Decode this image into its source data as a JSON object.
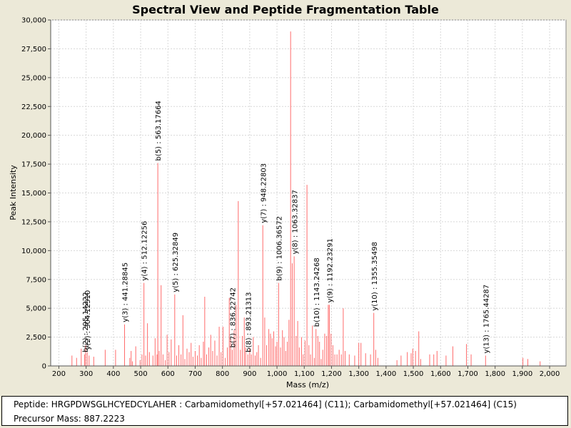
{
  "info": {
    "peptide_label": "Peptide:",
    "peptide": "HRGPDWSGLHCYEDCYLAHER : Carbamidomethyl[+57.021464] (C11); Carbamidomethyl[+57.021464] (C15)",
    "precursor_label": "Precursor Mass:",
    "precursor": "887.2223"
  },
  "colors": {
    "peak": "#ff6b6b",
    "plot_bg": "#ffffff",
    "grid": "#d8d8d8",
    "page_bg": "#ece9d8"
  },
  "chart_data": {
    "type": "bar",
    "title": "Spectral View and Peptide Fragmentation Table",
    "xlabel": "Mass (m/z)",
    "ylabel": "Peak Intensity",
    "xlim": [
      170,
      2060
    ],
    "ylim": [
      0,
      30000
    ],
    "grid": true,
    "x_ticks": [
      200,
      300,
      400,
      500,
      600,
      700,
      800,
      900,
      1000,
      1100,
      1200,
      1300,
      1400,
      1500,
      1600,
      1700,
      1800,
      1900,
      2000
    ],
    "x_tick_labels": [
      "200",
      "300",
      "400",
      "500",
      "600",
      "700",
      "800",
      "900",
      "1,000",
      "1,100",
      "1,200",
      "1,300",
      "1,400",
      "1,500",
      "1,600",
      "1,700",
      "1,800",
      "1,900",
      "2,000"
    ],
    "y_ticks": [
      0,
      2500,
      5000,
      7500,
      10000,
      12500,
      15000,
      17500,
      20000,
      22500,
      25000,
      27500,
      30000
    ],
    "y_tick_labels": [
      "0",
      "2,500",
      "5,000",
      "7,500",
      "10,000",
      "12,500",
      "15,000",
      "17,500",
      "20,000",
      "22,500",
      "25,000",
      "27,500",
      "30,000"
    ],
    "peaks": [
      [
        248,
        900
      ],
      [
        265,
        700
      ],
      [
        282,
        1500
      ],
      [
        294,
        1000
      ],
      [
        298,
        1800
      ],
      [
        304,
        1200
      ],
      [
        311,
        900
      ],
      [
        328,
        800
      ],
      [
        370,
        1400
      ],
      [
        408,
        1400
      ],
      [
        441,
        3600
      ],
      [
        460,
        700
      ],
      [
        465,
        1300
      ],
      [
        470,
        400
      ],
      [
        482,
        1700
      ],
      [
        498,
        500
      ],
      [
        505,
        1000
      ],
      [
        512,
        7200
      ],
      [
        518,
        900
      ],
      [
        525,
        3700
      ],
      [
        532,
        1200
      ],
      [
        545,
        900
      ],
      [
        553,
        2400
      ],
      [
        560,
        1000
      ],
      [
        563,
        17600
      ],
      [
        568,
        1300
      ],
      [
        575,
        7000
      ],
      [
        582,
        1000
      ],
      [
        590,
        500
      ],
      [
        597,
        2700
      ],
      [
        604,
        1200
      ],
      [
        612,
        2300
      ],
      [
        625,
        6200
      ],
      [
        632,
        900
      ],
      [
        640,
        1800
      ],
      [
        648,
        1000
      ],
      [
        655,
        4400
      ],
      [
        662,
        600
      ],
      [
        670,
        1500
      ],
      [
        678,
        1200
      ],
      [
        685,
        2000
      ],
      [
        692,
        800
      ],
      [
        700,
        1300
      ],
      [
        708,
        900
      ],
      [
        715,
        1800
      ],
      [
        722,
        700
      ],
      [
        730,
        2100
      ],
      [
        735,
        6000
      ],
      [
        742,
        1000
      ],
      [
        750,
        1600
      ],
      [
        757,
        2700
      ],
      [
        764,
        1300
      ],
      [
        772,
        2200
      ],
      [
        780,
        900
      ],
      [
        788,
        3400
      ],
      [
        795,
        1200
      ],
      [
        802,
        3400
      ],
      [
        810,
        700
      ],
      [
        818,
        1600
      ],
      [
        825,
        5900
      ],
      [
        830,
        2400
      ],
      [
        836,
        1400
      ],
      [
        843,
        3100
      ],
      [
        850,
        5300
      ],
      [
        858,
        14300
      ],
      [
        866,
        1400
      ],
      [
        873,
        2600
      ],
      [
        880,
        4200
      ],
      [
        885,
        1600
      ],
      [
        893,
        1000
      ],
      [
        900,
        1500
      ],
      [
        906,
        1000
      ],
      [
        913,
        2500
      ],
      [
        920,
        900
      ],
      [
        926,
        1200
      ],
      [
        932,
        1800
      ],
      [
        940,
        700
      ],
      [
        948,
        12200
      ],
      [
        955,
        4200
      ],
      [
        962,
        1800
      ],
      [
        970,
        3200
      ],
      [
        976,
        2800
      ],
      [
        982,
        2400
      ],
      [
        988,
        3000
      ],
      [
        995,
        1700
      ],
      [
        1000,
        2100
      ],
      [
        1006,
        7200
      ],
      [
        1013,
        1600
      ],
      [
        1020,
        3100
      ],
      [
        1026,
        2500
      ],
      [
        1032,
        1300
      ],
      [
        1038,
        2100
      ],
      [
        1044,
        4000
      ],
      [
        1050,
        29000
      ],
      [
        1056,
        8900
      ],
      [
        1063,
        9500
      ],
      [
        1070,
        2600
      ],
      [
        1076,
        3900
      ],
      [
        1082,
        1600
      ],
      [
        1090,
        2500
      ],
      [
        1096,
        1000
      ],
      [
        1103,
        2200
      ],
      [
        1110,
        15700
      ],
      [
        1117,
        1800
      ],
      [
        1123,
        1000
      ],
      [
        1130,
        3500
      ],
      [
        1137,
        700
      ],
      [
        1143,
        3200
      ],
      [
        1150,
        2600
      ],
      [
        1156,
        2100
      ],
      [
        1162,
        600
      ],
      [
        1168,
        1400
      ],
      [
        1175,
        2800
      ],
      [
        1182,
        2600
      ],
      [
        1188,
        5300
      ],
      [
        1192,
        5300
      ],
      [
        1198,
        2800
      ],
      [
        1205,
        1800
      ],
      [
        1212,
        1000
      ],
      [
        1220,
        1000
      ],
      [
        1228,
        1400
      ],
      [
        1236,
        1000
      ],
      [
        1243,
        5000
      ],
      [
        1250,
        1300
      ],
      [
        1265,
        1000
      ],
      [
        1285,
        900
      ],
      [
        1300,
        2000
      ],
      [
        1308,
        2000
      ],
      [
        1325,
        1100
      ],
      [
        1343,
        1000
      ],
      [
        1355,
        4600
      ],
      [
        1362,
        1400
      ],
      [
        1370,
        700
      ],
      [
        1440,
        500
      ],
      [
        1455,
        900
      ],
      [
        1478,
        1200
      ],
      [
        1492,
        1100
      ],
      [
        1498,
        1500
      ],
      [
        1508,
        1300
      ],
      [
        1520,
        3000
      ],
      [
        1527,
        600
      ],
      [
        1560,
        1000
      ],
      [
        1575,
        1000
      ],
      [
        1587,
        1300
      ],
      [
        1620,
        900
      ],
      [
        1645,
        1700
      ],
      [
        1695,
        1900
      ],
      [
        1712,
        1000
      ],
      [
        1765,
        900
      ],
      [
        1902,
        700
      ],
      [
        1920,
        600
      ],
      [
        1965,
        400
      ]
    ],
    "annotations": [
      {
        "label": "b(2) : 295.14222",
        "x": 295.1
      },
      {
        "label": "y(2) : 304.12510",
        "x": 304.1
      },
      {
        "label": "y(3) : 441.28845",
        "x": 441.3
      },
      {
        "label": "y(4) : 512.12256",
        "x": 512.1
      },
      {
        "label": "b(5) : 563.17664",
        "x": 563.2
      },
      {
        "label": "y(5) : 625.32849",
        "x": 625.3
      },
      {
        "label": "b(7) : 836.22742",
        "x": 836.2
      },
      {
        "label": "b(8) : 893.21313",
        "x": 893.2
      },
      {
        "label": "y(7) : 948.22803",
        "x": 948.2
      },
      {
        "label": "b(9) : 1006.36572",
        "x": 1006.4
      },
      {
        "label": "y(8) : 1063.32837",
        "x": 1063.3
      },
      {
        "label": "b(10) : 1143.24268",
        "x": 1143.2
      },
      {
        "label": "y(9) : 1192.23291",
        "x": 1192.2
      },
      {
        "label": "y(10) : 1355.35498",
        "x": 1355.4
      },
      {
        "label": "y(13) : 1765.44287",
        "x": 1765.4
      }
    ]
  }
}
